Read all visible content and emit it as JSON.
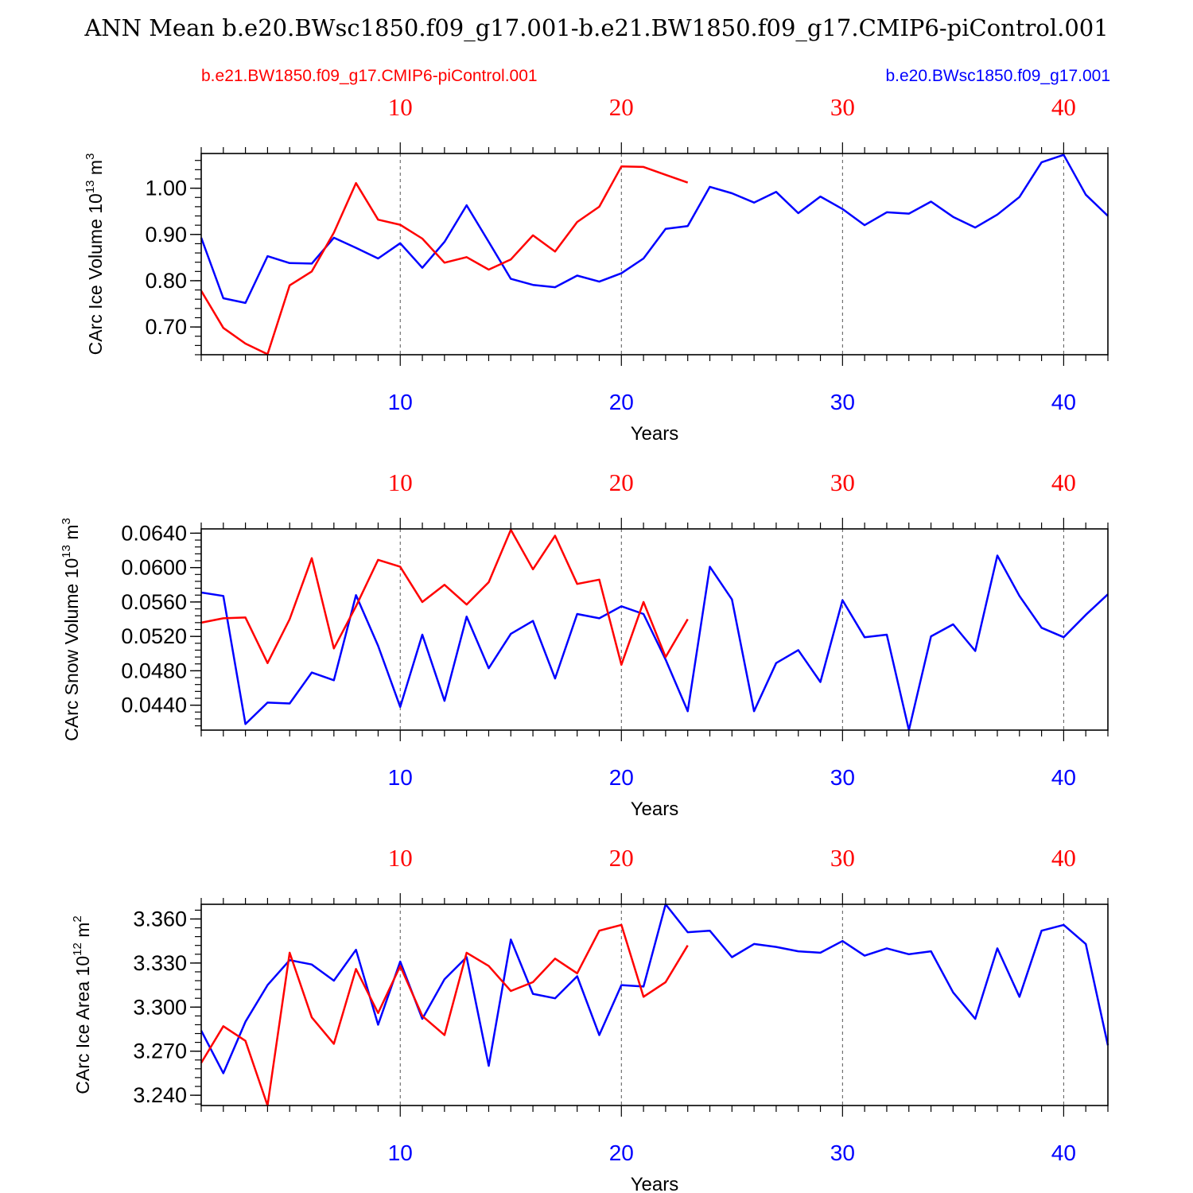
{
  "title": "ANN Mean b.e20.BWsc1850.f09_g17.001-b.e21.BW1850.f09_g17.CMIP6-piControl.001",
  "legend": {
    "control_name": "b.e21.BW1850.f09_g17.CMIP6-piControl.001",
    "case_name": "b.e20.BWsc1850.f09_g17.001"
  },
  "colors": {
    "control": "#ff0000",
    "case": "#0000ff",
    "axis": "#000000",
    "grid": "#555555"
  },
  "chart_data": [
    {
      "type": "line",
      "ylabel": "CArc Ice Volume 10",
      "ylabel_exp": "13",
      "ylabel_unit": " m",
      "ylabel_unit_exp": "3",
      "xlabel": "Years",
      "xlim": [
        1,
        42
      ],
      "ylim": [
        0.64,
        1.075
      ],
      "xticks": [
        10,
        20,
        30,
        40
      ],
      "xtick_labels": [
        "10",
        "20",
        "30",
        "40"
      ],
      "top_tick_labels": [
        "10",
        "20",
        "30",
        "40"
      ],
      "yticks": [
        0.7,
        0.8,
        0.9,
        1.0
      ],
      "ytick_labels": [
        "0.70",
        "0.80",
        "0.90",
        "1.00"
      ],
      "yminor": 0.02,
      "series": [
        {
          "name": "b.e20.BWsc1850.f09_g17.001",
          "color": "#0000ff",
          "x": [
            1,
            2,
            3,
            4,
            5,
            6,
            7,
            8,
            9,
            10,
            11,
            12,
            13,
            14,
            15,
            16,
            17,
            18,
            19,
            20,
            21,
            22,
            23,
            24,
            25,
            26,
            27,
            28,
            29,
            30,
            31,
            32,
            33,
            34,
            35,
            36,
            37,
            38,
            39,
            40,
            41,
            42
          ],
          "values": [
            0.893,
            0.762,
            0.752,
            0.853,
            0.838,
            0.837,
            0.893,
            0.871,
            0.848,
            0.881,
            0.828,
            0.884,
            0.963,
            0.884,
            0.804,
            0.791,
            0.786,
            0.811,
            0.798,
            0.816,
            0.848,
            0.912,
            0.918,
            1.003,
            0.989,
            0.969,
            0.992,
            0.946,
            0.982,
            0.955,
            0.92,
            0.948,
            0.945,
            0.971,
            0.938,
            0.915,
            0.943,
            0.981,
            1.056,
            1.072,
            0.986,
            0.94
          ]
        },
        {
          "name": "b.e21.BW1850.f09_g17.CMIP6-piControl.001",
          "color": "#ff0000",
          "x": [
            1,
            2,
            3,
            4,
            5,
            6,
            7,
            8,
            9,
            10,
            11,
            12,
            13,
            14,
            15,
            16,
            17,
            18,
            19,
            20,
            21,
            22,
            23
          ],
          "values": [
            0.778,
            0.698,
            0.664,
            0.641,
            0.79,
            0.82,
            0.904,
            1.011,
            0.932,
            0.921,
            0.891,
            0.839,
            0.851,
            0.824,
            0.846,
            0.898,
            0.863,
            0.927,
            0.96,
            1.047,
            1.046,
            1.029,
            1.012
          ]
        }
      ]
    },
    {
      "type": "line",
      "ylabel": "CArc Snow Volume 10",
      "ylabel_exp": "13",
      "ylabel_unit": " m",
      "ylabel_unit_exp": "3",
      "xlabel": "Years",
      "xlim": [
        1,
        42
      ],
      "ylim": [
        0.0411,
        0.0645
      ],
      "xticks": [
        10,
        20,
        30,
        40
      ],
      "xtick_labels": [
        "10",
        "20",
        "30",
        "40"
      ],
      "top_tick_labels": [
        "10",
        "20",
        "30",
        "40"
      ],
      "yticks": [
        0.044,
        0.048,
        0.052,
        0.056,
        0.06,
        0.064
      ],
      "ytick_labels": [
        "0.0440",
        "0.0480",
        "0.0520",
        "0.0560",
        "0.0600",
        "0.0640"
      ],
      "yminor": 0.0008,
      "series": [
        {
          "name": "b.e20.BWsc1850.f09_g17.001",
          "color": "#0000ff",
          "x": [
            1,
            2,
            3,
            4,
            5,
            6,
            7,
            8,
            9,
            10,
            11,
            12,
            13,
            14,
            15,
            16,
            17,
            18,
            19,
            20,
            21,
            22,
            23,
            24,
            25,
            26,
            27,
            28,
            29,
            30,
            31,
            32,
            33,
            34,
            35,
            36,
            37,
            38,
            39,
            40,
            41,
            42
          ],
          "values": [
            0.0571,
            0.0567,
            0.0418,
            0.0443,
            0.0442,
            0.0478,
            0.0469,
            0.0568,
            0.0509,
            0.0438,
            0.0522,
            0.0445,
            0.0543,
            0.0483,
            0.0523,
            0.0538,
            0.0471,
            0.0546,
            0.0541,
            0.0555,
            0.0546,
            0.0493,
            0.0433,
            0.0601,
            0.0563,
            0.0433,
            0.0489,
            0.0504,
            0.0467,
            0.0562,
            0.0519,
            0.0522,
            0.0411,
            0.052,
            0.0534,
            0.0503,
            0.0614,
            0.0567,
            0.053,
            0.0519,
            0.0545,
            0.0569
          ]
        },
        {
          "name": "b.e21.BW1850.f09_g17.CMIP6-piControl.001",
          "color": "#ff0000",
          "x": [
            1,
            2,
            3,
            4,
            5,
            6,
            7,
            8,
            9,
            10,
            11,
            12,
            13,
            14,
            15,
            16,
            17,
            18,
            19,
            20,
            21,
            22,
            23
          ],
          "values": [
            0.0536,
            0.0541,
            0.0542,
            0.0489,
            0.054,
            0.0611,
            0.0506,
            0.0555,
            0.0609,
            0.0601,
            0.056,
            0.058,
            0.0557,
            0.0583,
            0.0644,
            0.0598,
            0.0637,
            0.0581,
            0.0586,
            0.0487,
            0.056,
            0.0496,
            0.054
          ]
        }
      ]
    },
    {
      "type": "line",
      "ylabel": "CArc Ice Area 10",
      "ylabel_exp": "12",
      "ylabel_unit": " m",
      "ylabel_unit_exp": "2",
      "xlabel": "Years",
      "xlim": [
        1,
        42
      ],
      "ylim": [
        3.233,
        3.37
      ],
      "xticks": [
        10,
        20,
        30,
        40
      ],
      "xtick_labels": [
        "10",
        "20",
        "30",
        "40"
      ],
      "top_tick_labels": [
        "10",
        "20",
        "30",
        "40"
      ],
      "yticks": [
        3.24,
        3.27,
        3.3,
        3.33,
        3.36
      ],
      "ytick_labels": [
        "3.240",
        "3.270",
        "3.300",
        "3.330",
        "3.360"
      ],
      "yminor": 0.006,
      "series": [
        {
          "name": "b.e20.BWsc1850.f09_g17.001",
          "color": "#0000ff",
          "x": [
            1,
            2,
            3,
            4,
            5,
            6,
            7,
            8,
            9,
            10,
            11,
            12,
            13,
            14,
            15,
            16,
            17,
            18,
            19,
            20,
            21,
            22,
            23,
            24,
            25,
            26,
            27,
            28,
            29,
            30,
            31,
            32,
            33,
            34,
            35,
            36,
            37,
            38,
            39,
            40,
            41,
            42
          ],
          "values": [
            3.284,
            3.255,
            3.29,
            3.315,
            3.332,
            3.329,
            3.318,
            3.339,
            3.288,
            3.331,
            3.292,
            3.319,
            3.334,
            3.26,
            3.346,
            3.309,
            3.306,
            3.321,
            3.281,
            3.315,
            3.314,
            3.37,
            3.351,
            3.352,
            3.334,
            3.343,
            3.341,
            3.338,
            3.337,
            3.345,
            3.335,
            3.34,
            3.336,
            3.338,
            3.31,
            3.292,
            3.34,
            3.307,
            3.352,
            3.356,
            3.343,
            3.274
          ]
        },
        {
          "name": "b.e21.BW1850.f09_g17.CMIP6-piControl.001",
          "color": "#ff0000",
          "x": [
            1,
            2,
            3,
            4,
            5,
            6,
            7,
            8,
            9,
            10,
            11,
            12,
            13,
            14,
            15,
            16,
            17,
            18,
            19,
            20,
            21,
            22,
            23
          ],
          "values": [
            3.262,
            3.287,
            3.277,
            3.233,
            3.337,
            3.293,
            3.275,
            3.326,
            3.296,
            3.328,
            3.294,
            3.281,
            3.337,
            3.328,
            3.311,
            3.317,
            3.333,
            3.323,
            3.352,
            3.356,
            3.307,
            3.317,
            3.342
          ]
        }
      ]
    }
  ]
}
